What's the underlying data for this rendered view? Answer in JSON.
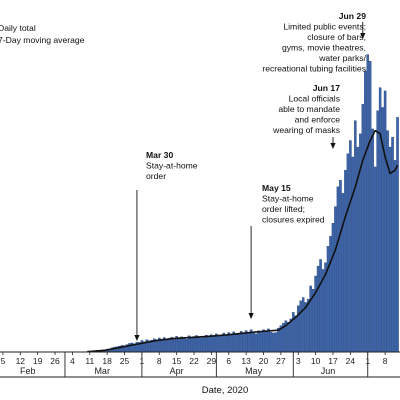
{
  "chart_data": {
    "type": "bar",
    "xlabel": "Date, 2020",
    "legend": [
      "Daily total",
      "7-Day moving average"
    ],
    "legend_placement": "top-left",
    "x_start": "2020-02-01",
    "x_end": "2020-07-14",
    "month_ticks": [
      "2020-02-01",
      "2020-03-01",
      "2020-04-01",
      "2020-05-01",
      "2020-06-01",
      "2020-07-01"
    ],
    "month_labels": [
      {
        "label": "Feb",
        "date": "2020-02-15"
      },
      {
        "label": "Mar",
        "date": "2020-03-16"
      },
      {
        "label": "Apr",
        "date": "2020-04-15"
      },
      {
        "label": "May",
        "date": "2020-05-16"
      },
      {
        "label": "Jun",
        "date": "2020-06-15"
      }
    ],
    "day_ticks": [
      {
        "label": "5",
        "date": "2020-02-05"
      },
      {
        "label": "12",
        "date": "2020-02-12"
      },
      {
        "label": "19",
        "date": "2020-02-19"
      },
      {
        "label": "26",
        "date": "2020-02-26"
      },
      {
        "label": "4",
        "date": "2020-03-04"
      },
      {
        "label": "11",
        "date": "2020-03-11"
      },
      {
        "label": "18",
        "date": "2020-03-18"
      },
      {
        "label": "25",
        "date": "2020-03-25"
      },
      {
        "label": "1",
        "date": "2020-04-01"
      },
      {
        "label": "8",
        "date": "2020-04-08"
      },
      {
        "label": "15",
        "date": "2020-04-15"
      },
      {
        "label": "22",
        "date": "2020-04-22"
      },
      {
        "label": "29",
        "date": "2020-04-29"
      },
      {
        "label": "6",
        "date": "2020-05-06"
      },
      {
        "label": "13",
        "date": "2020-05-13"
      },
      {
        "label": "20",
        "date": "2020-05-20"
      },
      {
        "label": "27",
        "date": "2020-05-27"
      },
      {
        "label": "3",
        "date": "2020-06-03"
      },
      {
        "label": "10",
        "date": "2020-06-10"
      },
      {
        "label": "17",
        "date": "2020-06-17"
      },
      {
        "label": "24",
        "date": "2020-06-24"
      },
      {
        "label": "1",
        "date": "2020-07-01"
      },
      {
        "label": "8",
        "date": "2020-07-08"
      }
    ],
    "daily": [
      {
        "date": "2020-03-07",
        "value": 1
      },
      {
        "date": "2020-03-08",
        "value": 0
      },
      {
        "date": "2020-03-09",
        "value": 2
      },
      {
        "date": "2020-03-10",
        "value": 3
      },
      {
        "date": "2020-03-11",
        "value": 5
      },
      {
        "date": "2020-03-12",
        "value": 7
      },
      {
        "date": "2020-03-13",
        "value": 6
      },
      {
        "date": "2020-03-14",
        "value": 10
      },
      {
        "date": "2020-03-15",
        "value": 8
      },
      {
        "date": "2020-03-16",
        "value": 12
      },
      {
        "date": "2020-03-17",
        "value": 14
      },
      {
        "date": "2020-03-18",
        "value": 18
      },
      {
        "date": "2020-03-19",
        "value": 20
      },
      {
        "date": "2020-03-20",
        "value": 26
      },
      {
        "date": "2020-03-21",
        "value": 30
      },
      {
        "date": "2020-03-22",
        "value": 32
      },
      {
        "date": "2020-03-23",
        "value": 36
      },
      {
        "date": "2020-03-24",
        "value": 40
      },
      {
        "date": "2020-03-25",
        "value": 38
      },
      {
        "date": "2020-03-26",
        "value": 45
      },
      {
        "date": "2020-03-27",
        "value": 52
      },
      {
        "date": "2020-03-28",
        "value": 55
      },
      {
        "date": "2020-03-29",
        "value": 50
      },
      {
        "date": "2020-03-30",
        "value": 60
      },
      {
        "date": "2020-03-31",
        "value": 58
      },
      {
        "date": "2020-04-01",
        "value": 70
      },
      {
        "date": "2020-04-02",
        "value": 62
      },
      {
        "date": "2020-04-03",
        "value": 75
      },
      {
        "date": "2020-04-04",
        "value": 68
      },
      {
        "date": "2020-04-05",
        "value": 72
      },
      {
        "date": "2020-04-06",
        "value": 80
      },
      {
        "date": "2020-04-07",
        "value": 74
      },
      {
        "date": "2020-04-08",
        "value": 85
      },
      {
        "date": "2020-04-09",
        "value": 78
      },
      {
        "date": "2020-04-10",
        "value": 88
      },
      {
        "date": "2020-04-11",
        "value": 75
      },
      {
        "date": "2020-04-12",
        "value": 82
      },
      {
        "date": "2020-04-13",
        "value": 90
      },
      {
        "date": "2020-04-14",
        "value": 84
      },
      {
        "date": "2020-04-15",
        "value": 95
      },
      {
        "date": "2020-04-16",
        "value": 80
      },
      {
        "date": "2020-04-17",
        "value": 92
      },
      {
        "date": "2020-04-18",
        "value": 86
      },
      {
        "date": "2020-04-19",
        "value": 78
      },
      {
        "date": "2020-04-20",
        "value": 98
      },
      {
        "date": "2020-04-21",
        "value": 88
      },
      {
        "date": "2020-04-22",
        "value": 94
      },
      {
        "date": "2020-04-23",
        "value": 100
      },
      {
        "date": "2020-04-24",
        "value": 92
      },
      {
        "date": "2020-04-25",
        "value": 85
      },
      {
        "date": "2020-04-26",
        "value": 90
      },
      {
        "date": "2020-04-27",
        "value": 102
      },
      {
        "date": "2020-04-28",
        "value": 96
      },
      {
        "date": "2020-04-29",
        "value": 105
      },
      {
        "date": "2020-04-30",
        "value": 98
      },
      {
        "date": "2020-05-01",
        "value": 110
      },
      {
        "date": "2020-05-02",
        "value": 95
      },
      {
        "date": "2020-05-03",
        "value": 100
      },
      {
        "date": "2020-05-04",
        "value": 115
      },
      {
        "date": "2020-05-05",
        "value": 105
      },
      {
        "date": "2020-05-06",
        "value": 118
      },
      {
        "date": "2020-05-07",
        "value": 108
      },
      {
        "date": "2020-05-08",
        "value": 122
      },
      {
        "date": "2020-05-09",
        "value": 112
      },
      {
        "date": "2020-05-10",
        "value": 105
      },
      {
        "date": "2020-05-11",
        "value": 125
      },
      {
        "date": "2020-05-12",
        "value": 115
      },
      {
        "date": "2020-05-13",
        "value": 130
      },
      {
        "date": "2020-05-14",
        "value": 120
      },
      {
        "date": "2020-05-15",
        "value": 135
      },
      {
        "date": "2020-05-16",
        "value": 118
      },
      {
        "date": "2020-05-17",
        "value": 110
      },
      {
        "date": "2020-05-18",
        "value": 128
      },
      {
        "date": "2020-05-19",
        "value": 122
      },
      {
        "date": "2020-05-20",
        "value": 135
      },
      {
        "date": "2020-05-21",
        "value": 125
      },
      {
        "date": "2020-05-22",
        "value": 140
      },
      {
        "date": "2020-05-23",
        "value": 120
      },
      {
        "date": "2020-05-24",
        "value": 115
      },
      {
        "date": "2020-05-25",
        "value": 118
      },
      {
        "date": "2020-05-26",
        "value": 145
      },
      {
        "date": "2020-05-27",
        "value": 160
      },
      {
        "date": "2020-05-28",
        "value": 175
      },
      {
        "date": "2020-05-29",
        "value": 190
      },
      {
        "date": "2020-05-30",
        "value": 180
      },
      {
        "date": "2020-05-31",
        "value": 200
      },
      {
        "date": "2020-06-01",
        "value": 240
      },
      {
        "date": "2020-06-02",
        "value": 220
      },
      {
        "date": "2020-06-03",
        "value": 280
      },
      {
        "date": "2020-06-04",
        "value": 310
      },
      {
        "date": "2020-06-05",
        "value": 330
      },
      {
        "date": "2020-06-06",
        "value": 300
      },
      {
        "date": "2020-06-07",
        "value": 320
      },
      {
        "date": "2020-06-08",
        "value": 400
      },
      {
        "date": "2020-06-09",
        "value": 380
      },
      {
        "date": "2020-06-10",
        "value": 460
      },
      {
        "date": "2020-06-11",
        "value": 520
      },
      {
        "date": "2020-06-12",
        "value": 560
      },
      {
        "date": "2020-06-13",
        "value": 500
      },
      {
        "date": "2020-06-14",
        "value": 540
      },
      {
        "date": "2020-06-15",
        "value": 640
      },
      {
        "date": "2020-06-16",
        "value": 700
      },
      {
        "date": "2020-06-17",
        "value": 780
      },
      {
        "date": "2020-06-18",
        "value": 880
      },
      {
        "date": "2020-06-19",
        "value": 1000
      },
      {
        "date": "2020-06-20",
        "value": 1040
      },
      {
        "date": "2020-06-21",
        "value": 960
      },
      {
        "date": "2020-06-22",
        "value": 1100
      },
      {
        "date": "2020-06-23",
        "value": 1200
      },
      {
        "date": "2020-06-24",
        "value": 1280
      },
      {
        "date": "2020-06-25",
        "value": 1180
      },
      {
        "date": "2020-06-26",
        "value": 1400
      },
      {
        "date": "2020-06-27",
        "value": 1240
      },
      {
        "date": "2020-06-28",
        "value": 1320
      },
      {
        "date": "2020-06-29",
        "value": 1500
      },
      {
        "date": "2020-06-30",
        "value": 1700
      },
      {
        "date": "2020-07-01",
        "value": 1800
      },
      {
        "date": "2020-07-02",
        "value": 1760
      },
      {
        "date": "2020-07-03",
        "value": 1350
      },
      {
        "date": "2020-07-04",
        "value": 1120
      },
      {
        "date": "2020-07-05",
        "value": 1460
      },
      {
        "date": "2020-07-06",
        "value": 1600
      },
      {
        "date": "2020-07-07",
        "value": 1480
      },
      {
        "date": "2020-07-08",
        "value": 1580
      },
      {
        "date": "2020-07-09",
        "value": 1340
      },
      {
        "date": "2020-07-10",
        "value": 1240
      },
      {
        "date": "2020-07-11",
        "value": 1300
      },
      {
        "date": "2020-07-12",
        "value": 1160
      },
      {
        "date": "2020-07-13",
        "value": 1420
      }
    ],
    "moving_average": [
      {
        "date": "2020-03-10",
        "value": 2
      },
      {
        "date": "2020-03-17",
        "value": 10
      },
      {
        "date": "2020-03-24",
        "value": 30
      },
      {
        "date": "2020-03-31",
        "value": 50
      },
      {
        "date": "2020-04-07",
        "value": 70
      },
      {
        "date": "2020-04-14",
        "value": 82
      },
      {
        "date": "2020-04-21",
        "value": 88
      },
      {
        "date": "2020-04-28",
        "value": 95
      },
      {
        "date": "2020-05-05",
        "value": 103
      },
      {
        "date": "2020-05-12",
        "value": 114
      },
      {
        "date": "2020-05-19",
        "value": 124
      },
      {
        "date": "2020-05-26",
        "value": 132
      },
      {
        "date": "2020-05-29",
        "value": 160
      },
      {
        "date": "2020-06-02",
        "value": 210
      },
      {
        "date": "2020-06-06",
        "value": 270
      },
      {
        "date": "2020-06-10",
        "value": 360
      },
      {
        "date": "2020-06-14",
        "value": 470
      },
      {
        "date": "2020-06-18",
        "value": 620
      },
      {
        "date": "2020-06-22",
        "value": 820
      },
      {
        "date": "2020-06-26",
        "value": 1000
      },
      {
        "date": "2020-06-29",
        "value": 1160
      },
      {
        "date": "2020-07-02",
        "value": 1280
      },
      {
        "date": "2020-07-04",
        "value": 1340
      },
      {
        "date": "2020-07-06",
        "value": 1320
      },
      {
        "date": "2020-07-08",
        "value": 1180
      },
      {
        "date": "2020-07-10",
        "value": 1080
      },
      {
        "date": "2020-07-12",
        "value": 1100
      },
      {
        "date": "2020-07-13",
        "value": 1130
      }
    ],
    "annotations": [
      {
        "id": "mar30",
        "date": "2020-03-30",
        "date_label": "Mar 30",
        "lines": [
          "Stay-at-home",
          "order"
        ]
      },
      {
        "id": "may15",
        "date": "2020-05-15",
        "date_label": "May 15",
        "lines": [
          "Stay-at-home",
          "order lifted;",
          "closures expired"
        ]
      },
      {
        "id": "jun17",
        "date": "2020-06-17",
        "date_label": "Jun 17",
        "lines": [
          "Local officials",
          "able to mandate",
          "and enforce",
          "wearing of masks"
        ]
      },
      {
        "id": "jun29",
        "date": "2020-06-29",
        "date_label": "Jun 29",
        "lines": [
          "Limited public events;",
          "closure of bars,",
          "gyms, movie theatres,",
          "water parks/",
          "recreational tubing facilities"
        ]
      }
    ],
    "colors": {
      "bar": "#3d64a8",
      "bar_edge": "#1e3c72",
      "line": "#111111",
      "axis": "#222222"
    }
  }
}
